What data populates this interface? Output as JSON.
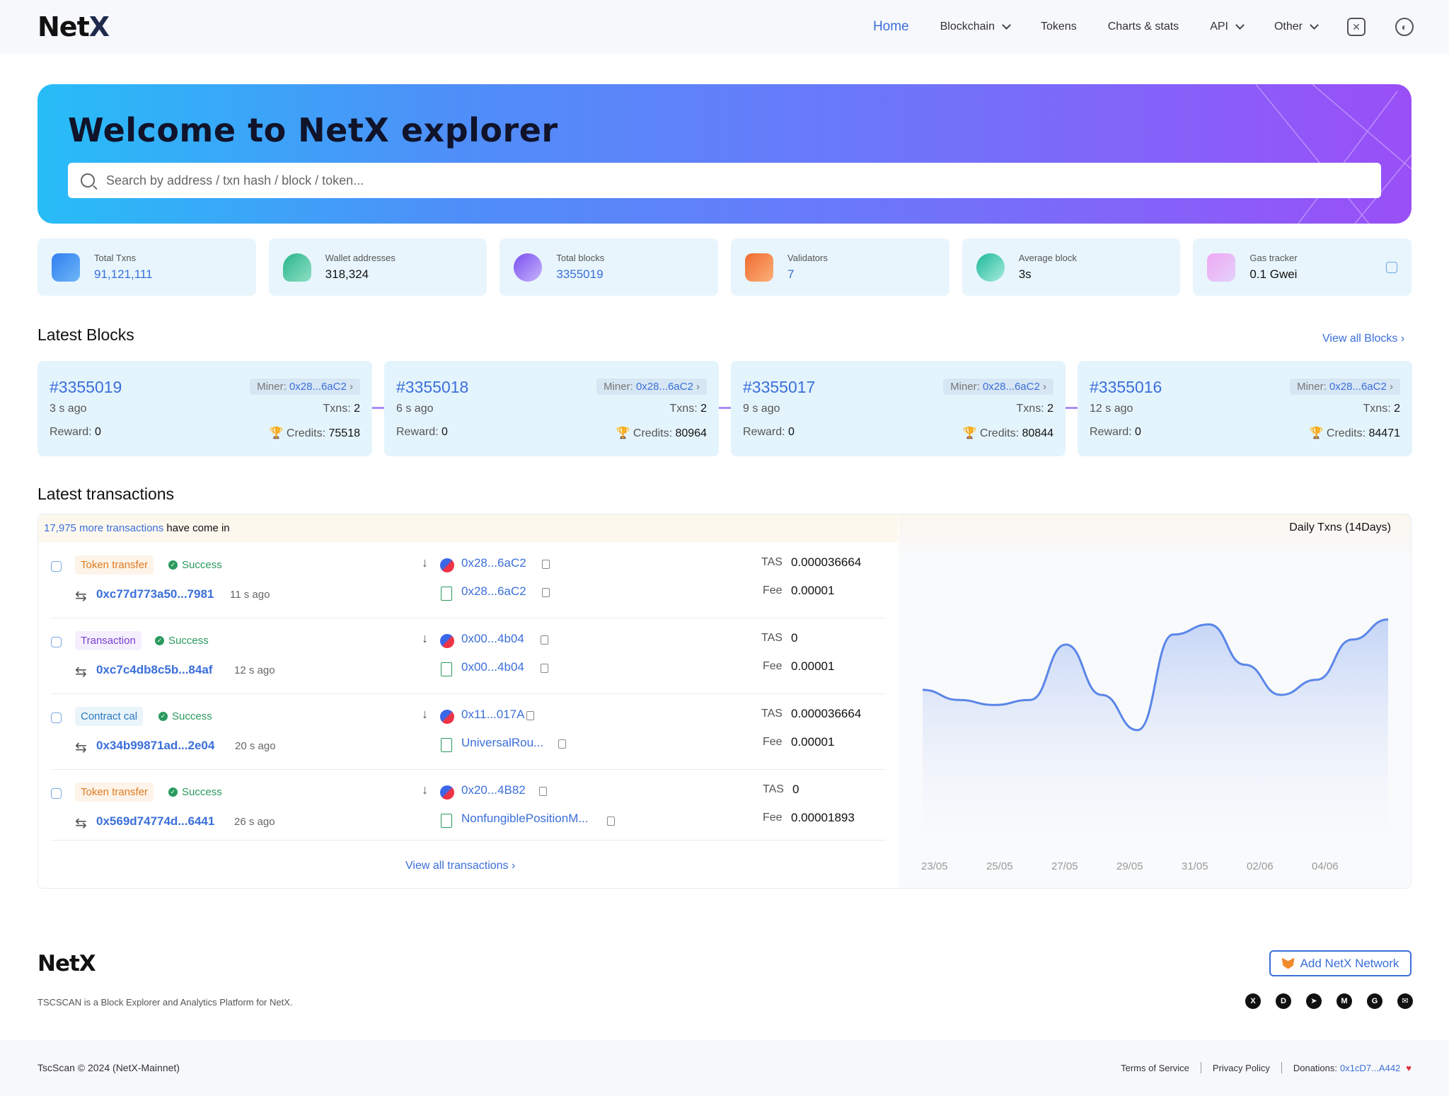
{
  "header": {
    "logo_main": "Net",
    "logo_x": "X",
    "nav": [
      {
        "label": "Home",
        "active": true,
        "dropdown": false
      },
      {
        "label": "Blockchain",
        "active": false,
        "dropdown": true
      },
      {
        "label": "Tokens",
        "active": false,
        "dropdown": false
      },
      {
        "label": "Charts & stats",
        "active": false,
        "dropdown": false
      },
      {
        "label": "API",
        "active": false,
        "dropdown": true
      },
      {
        "label": "Other",
        "active": false,
        "dropdown": true
      }
    ],
    "icons": [
      "network-hex-icon",
      "palette-icon"
    ]
  },
  "hero": {
    "title": "Welcome to NetX explorer",
    "search_placeholder": "Search by address / txn hash / block / token..."
  },
  "stats": [
    {
      "label": "Total Txns",
      "value": "91,121,111",
      "blue": true,
      "icon": "txns-icon",
      "color": "#3b7cf0"
    },
    {
      "label": "Wallet addresses",
      "value": "318,324",
      "blue": false,
      "icon": "wallet-user-icon",
      "color": "#2fbf8f"
    },
    {
      "label": "Total blocks",
      "value": "3355019",
      "blue": true,
      "icon": "blocks-cube-icon",
      "color": "#7b5cf0"
    },
    {
      "label": "Validators",
      "value": "7",
      "blue": true,
      "icon": "validators-icon",
      "color": "#f07a3b"
    },
    {
      "label": "Average block",
      "value": "3s",
      "blue": false,
      "icon": "clock-icon",
      "color": "#2fc0a8"
    },
    {
      "label": "Gas tracker",
      "value": "0.1 Gwei",
      "blue": false,
      "icon": "gas-icon",
      "color": "#d48cf0"
    }
  ],
  "latest_blocks": {
    "title": "Latest Blocks",
    "view_all": "View all Blocks",
    "items": [
      {
        "number": "#3355019",
        "miner_label": "Miner:",
        "miner": "0x28...6aC2",
        "age": "3 s ago",
        "txns_label": "Txns:",
        "txns": "2",
        "reward_label": "Reward:",
        "reward": "0",
        "credits_label": "Credits:",
        "credits": "75518"
      },
      {
        "number": "#3355018",
        "miner_label": "Miner:",
        "miner": "0x28...6aC2",
        "age": "6 s ago",
        "txns_label": "Txns:",
        "txns": "2",
        "reward_label": "Reward:",
        "reward": "0",
        "credits_label": "Credits:",
        "credits": "80964"
      },
      {
        "number": "#3355017",
        "miner_label": "Miner:",
        "miner": "0x28...6aC2",
        "age": "9 s ago",
        "txns_label": "Txns:",
        "txns": "2",
        "reward_label": "Reward:",
        "reward": "0",
        "credits_label": "Credits:",
        "credits": "80844"
      },
      {
        "number": "#3355016",
        "miner_label": "Miner:",
        "miner": "0x28...6aC2",
        "age": "12 s ago",
        "txns_label": "Txns:",
        "txns": "2",
        "reward_label": "Reward:",
        "reward": "0",
        "credits_label": "Credits:",
        "credits": "84471"
      }
    ]
  },
  "latest_transactions": {
    "title": "Latest transactions",
    "banner_link": "17,975 more transactions",
    "banner_rest": " have come in",
    "view_all": "View all transactions",
    "items": [
      {
        "type": "Token transfer",
        "type_style": "orange",
        "status": "Success",
        "hash": "0xc77d773a50...7981",
        "age": "11 s ago",
        "from": "0x28...6aC2",
        "to": "0x28...6aC2",
        "value_label": "TAS",
        "value": "0.000036664",
        "fee_label": "Fee",
        "fee": "0.00001"
      },
      {
        "type": "Transaction",
        "type_style": "purple",
        "status": "Success",
        "hash": "0xc7c4db8c5b...84af",
        "age": "12 s ago",
        "from": "0x00...4b04",
        "to": "0x00...4b04",
        "value_label": "TAS",
        "value": "0",
        "fee_label": "Fee",
        "fee": "0.00001"
      },
      {
        "type": "Contract cal",
        "type_style": "cyan",
        "status": "Success",
        "hash": "0x34b99871ad...2e04",
        "age": "20 s ago",
        "from": "0x11...017A",
        "to": "UniversalRou...",
        "value_label": "TAS",
        "value": "0.000036664",
        "fee_label": "Fee",
        "fee": "0.00001"
      },
      {
        "type": "Token transfer",
        "type_style": "orange",
        "status": "Success",
        "hash": "0x569d74774d...6441",
        "age": "26 s ago",
        "from": "0x20...4B82",
        "to": "NonfungiblePositionM...",
        "value_label": "TAS",
        "value": "0",
        "fee_label": "Fee",
        "fee": "0.00001893"
      }
    ]
  },
  "chart_data": {
    "type": "area",
    "title": "Daily Txns (14Days)",
    "x_ticks": [
      "23/05",
      "25/05",
      "27/05",
      "29/05",
      "31/05",
      "02/06",
      "04/06"
    ],
    "values": [
      0.87,
      0.85,
      0.84,
      0.85,
      0.96,
      0.86,
      0.79,
      0.98,
      1.0,
      0.92,
      0.86,
      0.89,
      0.97,
      1.01
    ],
    "color": "#5b86e8",
    "fill_color": "#c9d8f6",
    "grid": false
  },
  "footer": {
    "logo": "NetX",
    "description": "TSCSCAN is a Block Explorer and Analytics Platform for NetX.",
    "add_network": "Add NetX Network",
    "socials": [
      {
        "icon": "x-twitter-icon",
        "glyph": "X"
      },
      {
        "icon": "discord-icon",
        "glyph": "D"
      },
      {
        "icon": "telegram-icon",
        "glyph": "➤"
      },
      {
        "icon": "medium-icon",
        "glyph": "M"
      },
      {
        "icon": "github-icon",
        "glyph": "G"
      },
      {
        "icon": "email-icon",
        "glyph": "✉"
      }
    ],
    "copyright": "TscScan © 2024 (NetX-Mainnet)",
    "terms": "Terms of Service",
    "privacy": "Privacy Policy",
    "donations_label": "Donations:",
    "donations_addr": "0x1cD7...A442",
    "heart": "♥"
  }
}
